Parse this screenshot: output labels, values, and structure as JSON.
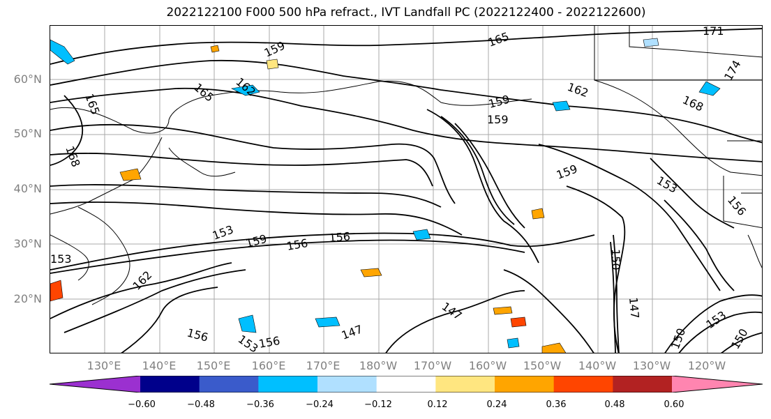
{
  "title": "2022122100 F000 500 hPa refract., IVT Landfall PC (2022122400 - 2022122600)",
  "lat_labels": [
    "60°N",
    "50°N",
    "40°N",
    "30°N",
    "20°N"
  ],
  "lon_labels": [
    "130°E",
    "140°E",
    "150°E",
    "160°E",
    "170°E",
    "180°W",
    "170°W",
    "160°W",
    "150°W",
    "140°W",
    "130°W",
    "120°W"
  ],
  "contour_labels": [
    "159",
    "165",
    "162",
    "165",
    "168",
    "165",
    "162",
    "159",
    "159",
    "168",
    "171",
    "174",
    "159",
    "153",
    "156",
    "153",
    "159",
    "156",
    "156",
    "150",
    "147",
    "147",
    "153",
    "150",
    "153",
    "150",
    "162",
    "156",
    "153",
    "147",
    "156"
  ],
  "colorbar": {
    "ticks": [
      "−0.60",
      "−0.48",
      "−0.36",
      "−0.24",
      "−0.12",
      "0.12",
      "0.24",
      "0.36",
      "0.48",
      "0.60"
    ],
    "colors": [
      "#9b30d0",
      "#00008b",
      "#3a5bcb",
      "#00bfff",
      "#b0e0ff",
      "#ffffff",
      "#ffe680",
      "#ffa500",
      "#ff4500",
      "#b22222",
      "#ff85b0"
    ]
  }
}
